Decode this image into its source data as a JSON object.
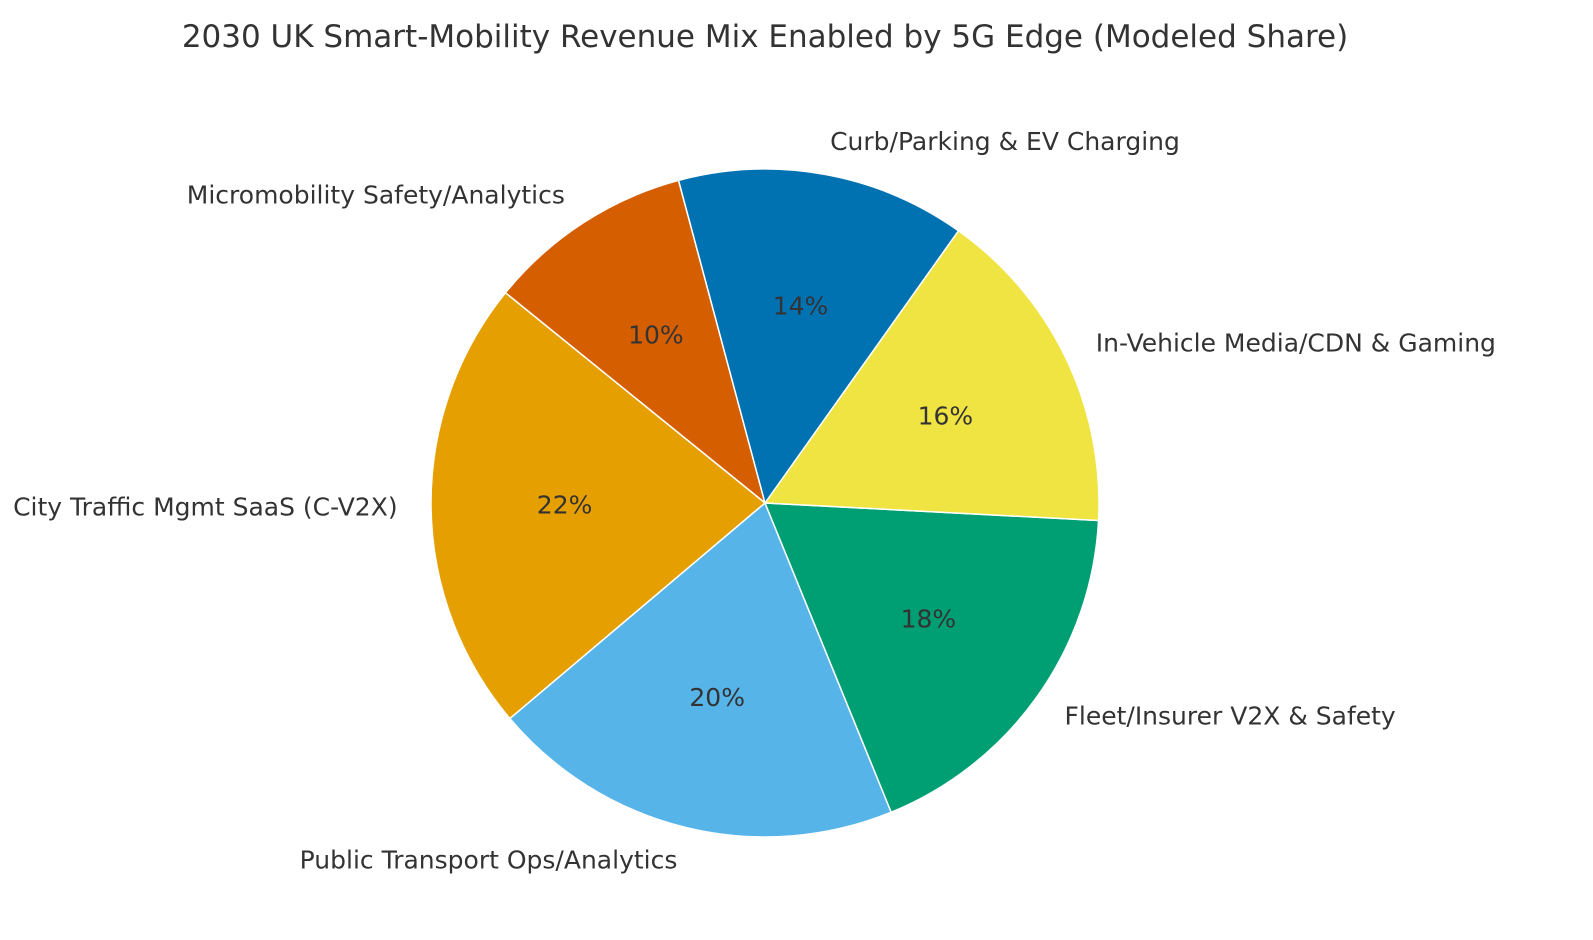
{
  "chart_data": {
    "type": "pie",
    "title": "2030 UK Smart-Mobility Revenue Mix Enabled by 5G Edge (Modeled Share)",
    "unit": "%",
    "start_angle_deg": 105,
    "direction": "counterclockwise",
    "slices": [
      {
        "label": "Micromobility Safety/Analytics",
        "value": 10,
        "pct_label": "10%",
        "color": "#D55E00"
      },
      {
        "label": "City Traffic Mgmt SaaS (C-V2X)",
        "value": 22,
        "pct_label": "22%",
        "color": "#E69F00"
      },
      {
        "label": "Public Transport Ops/Analytics",
        "value": 20,
        "pct_label": "20%",
        "color": "#56B4E9"
      },
      {
        "label": "Fleet/Insurer V2X & Safety",
        "value": 18,
        "pct_label": "18%",
        "color": "#009E73"
      },
      {
        "label": "In-Vehicle Media/CDN & Gaming",
        "value": 16,
        "pct_label": "16%",
        "color": "#F0E442"
      },
      {
        "label": "Curb/Parking & EV Charging",
        "value": 14,
        "pct_label": "14%",
        "color": "#0072B2"
      }
    ]
  }
}
